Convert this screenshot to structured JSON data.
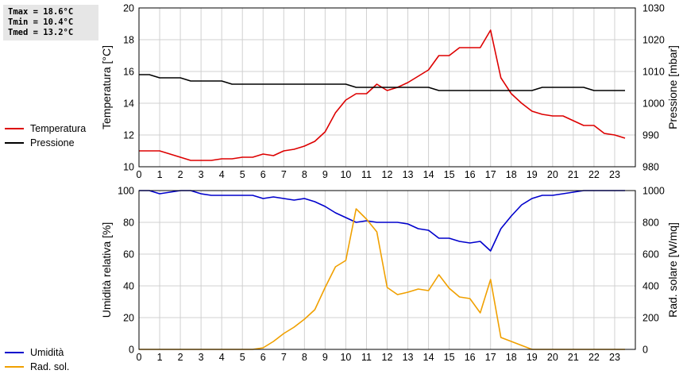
{
  "stats": {
    "tmax": "Tmax = 18.6°C",
    "tmin": "Tmin = 10.4°C",
    "tmed": "Tmed = 13.2°C"
  },
  "colors": {
    "temperature": "#dd0000",
    "pressure": "#000000",
    "humidity": "#0000cc",
    "solar": "#f0a000",
    "grid": "#d0d0d0"
  },
  "chart_data": [
    {
      "type": "line",
      "xlim": [
        0,
        24
      ],
      "x_ticks": [
        "0",
        "1",
        "2",
        "3",
        "4",
        "5",
        "6",
        "7",
        "8",
        "9",
        "10",
        "11",
        "12",
        "13",
        "14",
        "15",
        "16",
        "17",
        "18",
        "19",
        "20",
        "21",
        "22",
        "23"
      ],
      "ylabel_left": "Temperatura [°C]",
      "ylabel_right": "Pressione [mbar]",
      "ylim_left": [
        10,
        20
      ],
      "ylim_right": [
        980,
        1030
      ],
      "yticks_left": [
        "10",
        "12",
        "14",
        "16",
        "18",
        "20"
      ],
      "yticks_right": [
        "980",
        "990",
        "1000",
        "1010",
        "1020",
        "1030"
      ],
      "grid": true,
      "legend": {
        "position": "left",
        "items": [
          "Temperatura",
          "Pressione"
        ]
      },
      "series": [
        {
          "name": "Temperatura",
          "axis": "left",
          "x": [
            0,
            0.5,
            1,
            1.5,
            2,
            2.5,
            3,
            3.5,
            4,
            4.5,
            5,
            5.5,
            6,
            6.5,
            7,
            7.5,
            8,
            8.5,
            9,
            9.5,
            10,
            10.5,
            11,
            11.5,
            12,
            12.5,
            13,
            13.5,
            14,
            14.5,
            15,
            15.5,
            16,
            16.5,
            17,
            17.5,
            18,
            18.5,
            19,
            19.5,
            20,
            20.5,
            21,
            21.5,
            22,
            22.5,
            23,
            23.5
          ],
          "y": [
            11,
            11,
            11,
            10.8,
            10.6,
            10.4,
            10.4,
            10.4,
            10.5,
            10.5,
            10.6,
            10.6,
            10.8,
            10.7,
            11,
            11.1,
            11.3,
            11.6,
            12.2,
            13.4,
            14.2,
            14.6,
            14.6,
            15.2,
            14.8,
            15,
            15.3,
            15.7,
            16.1,
            17,
            17,
            17.5,
            17.5,
            17.5,
            18.6,
            15.6,
            14.6,
            14,
            13.5,
            13.3,
            13.2,
            13.2,
            12.9,
            12.6,
            12.6,
            12.1,
            12,
            11.8
          ]
        },
        {
          "name": "Pressione",
          "axis": "right",
          "x": [
            0,
            0.5,
            1,
            1.5,
            2,
            2.5,
            3,
            3.5,
            4,
            4.5,
            5,
            5.5,
            6,
            6.5,
            7,
            7.5,
            8,
            8.5,
            9,
            9.5,
            10,
            10.5,
            11,
            11.5,
            12,
            12.5,
            13,
            13.5,
            14,
            14.5,
            15,
            15.5,
            16,
            16.5,
            17,
            17.5,
            18,
            18.5,
            19,
            19.5,
            20,
            20.5,
            21,
            21.5,
            22,
            22.5,
            23,
            23.5
          ],
          "y": [
            1009,
            1009,
            1008,
            1008,
            1008,
            1007,
            1007,
            1007,
            1007,
            1006,
            1006,
            1006,
            1006,
            1006,
            1006,
            1006,
            1006,
            1006,
            1006,
            1006,
            1006,
            1005,
            1005,
            1005,
            1005,
            1005,
            1005,
            1005,
            1005,
            1004,
            1004,
            1004,
            1004,
            1004,
            1004,
            1004,
            1004,
            1004,
            1004,
            1005,
            1005,
            1005,
            1005,
            1005,
            1004,
            1004,
            1004,
            1004
          ]
        }
      ]
    },
    {
      "type": "line",
      "xlim": [
        0,
        24
      ],
      "x_ticks": [
        "0",
        "1",
        "2",
        "3",
        "4",
        "5",
        "6",
        "7",
        "8",
        "9",
        "10",
        "11",
        "12",
        "13",
        "14",
        "15",
        "16",
        "17",
        "18",
        "19",
        "20",
        "21",
        "22",
        "23"
      ],
      "ylabel_left": "Umidità relativa [%]",
      "ylabel_right": "Rad. solare [W/mq]",
      "ylim_left": [
        0,
        100
      ],
      "ylim_right": [
        0,
        1000
      ],
      "yticks_left": [
        "0",
        "20",
        "40",
        "60",
        "80",
        "100"
      ],
      "yticks_right": [
        "0",
        "200",
        "400",
        "600",
        "800",
        "1000"
      ],
      "grid": true,
      "legend": {
        "position": "left",
        "items": [
          "Umidità",
          "Rad. sol."
        ]
      },
      "series": [
        {
          "name": "Umidità",
          "axis": "left",
          "x": [
            0,
            0.5,
            1,
            1.5,
            2,
            2.5,
            3,
            3.5,
            4,
            4.5,
            5,
            5.5,
            6,
            6.5,
            7,
            7.5,
            8,
            8.5,
            9,
            9.5,
            10,
            10.5,
            11,
            11.5,
            12,
            12.5,
            13,
            13.5,
            14,
            14.5,
            15,
            15.5,
            16,
            16.5,
            17,
            17.5,
            18,
            18.5,
            19,
            19.5,
            20,
            20.5,
            21,
            21.5,
            22,
            22.5,
            23,
            23.5
          ],
          "y": [
            100,
            100,
            98,
            99,
            100,
            100,
            98,
            97,
            97,
            97,
            97,
            97,
            95,
            96,
            95,
            94,
            95,
            93,
            90,
            86,
            83,
            80,
            81,
            80,
            80,
            80,
            79,
            76,
            75,
            70,
            70,
            68,
            67,
            68,
            62,
            76,
            84,
            91,
            95,
            97,
            97,
            98,
            99,
            100,
            100,
            100,
            100,
            100
          ]
        },
        {
          "name": "Rad. sol.",
          "axis": "right",
          "x": [
            0,
            0.5,
            1,
            1.5,
            2,
            2.5,
            3,
            3.5,
            4,
            4.5,
            5,
            5.5,
            6,
            6.5,
            7,
            7.5,
            8,
            8.5,
            9,
            9.5,
            10,
            10.5,
            11,
            11.5,
            12,
            12.5,
            13,
            13.5,
            14,
            14.5,
            15,
            15.5,
            16,
            16.5,
            17,
            17.5,
            18,
            18.5,
            19,
            19.5,
            20,
            20.5,
            21,
            21.5,
            22,
            22.5,
            23,
            23.5
          ],
          "y": [
            0,
            0,
            0,
            0,
            0,
            0,
            0,
            0,
            0,
            0,
            0,
            0,
            10,
            50,
            100,
            140,
            190,
            250,
            390,
            520,
            560,
            885,
            820,
            740,
            390,
            345,
            360,
            380,
            370,
            470,
            385,
            330,
            320,
            230,
            440,
            75,
            50,
            25,
            0,
            0,
            0,
            0,
            0,
            0,
            0,
            0,
            0,
            0
          ]
        }
      ]
    }
  ]
}
